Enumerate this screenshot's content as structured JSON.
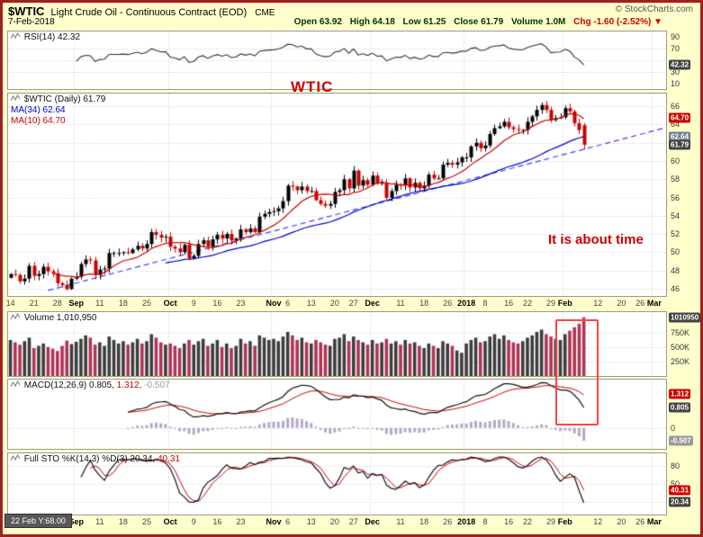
{
  "header": {
    "symbol": "$WTIC",
    "title": "Light Crude Oil - Continuous Contract (EOD)",
    "exchange": "CME",
    "copyright": "© StockCharts.com",
    "date": "7-Feb-2018",
    "quote": {
      "open_label": "Open",
      "open": "63.92",
      "high_label": "High",
      "high": "64.18",
      "low_label": "Low",
      "low": "61.25",
      "close_label": "Close",
      "close": "61.79",
      "volume_label": "Volume",
      "volume": "1.0M",
      "chg_label": "Chg",
      "chg": "-1.60 (-2.52%)",
      "chg_dir": "▼"
    }
  },
  "legends": {
    "rsi": {
      "name": "RSI(14)",
      "value": "42.32"
    },
    "price": {
      "name": "$WTIC (Daily)",
      "value": "61.79",
      "ma34": "MA(34) 62.64",
      "ma10": "MA(10) 64.70"
    },
    "volume": {
      "name": "Volume",
      "value": "1,010,950"
    },
    "macd": {
      "name": "MACD(12,26,9)",
      "v1": "0.805,",
      "v2": "1.312,",
      "v3": "-0.507"
    },
    "sto": {
      "name": "Full STO %K(14,3) %D(3)",
      "v1": "20.34,",
      "v2": "40.31"
    }
  },
  "annotations": {
    "title": "WTIC",
    "note": "It is about time"
  },
  "tooltip": {
    "text": "22 Feb Y:68.00"
  },
  "chart_data": {
    "type": "candlestick-multi-panel",
    "title": "$WTIC Light Crude Oil - Continuous Contract (EOD) CME",
    "date": "7-Feb-2018",
    "last_quote": {
      "open": 63.92,
      "high": 64.18,
      "low": 61.25,
      "close": 61.79,
      "volume": 1010950,
      "change": -1.6,
      "change_pct": -2.52
    },
    "slots": 140,
    "closes": [
      47.6,
      47.5,
      46.8,
      47.1,
      48.5,
      47.4,
      47.6,
      48.4,
      47.9,
      47.7,
      46.6,
      46.4,
      45.96,
      47.1,
      47.3,
      48.7,
      49.2,
      49.1,
      47.5,
      48.1,
      48.2,
      49.9,
      49.9,
      49.9,
      50.0,
      49.9,
      50.3,
      50.7,
      50.4,
      50.9,
      52.2,
      51.9,
      51.6,
      51.7,
      50.6,
      50.4,
      50.0,
      50.8,
      49.3,
      49.6,
      50.9,
      51.3,
      50.6,
      51.4,
      51.9,
      51.5,
      52.0,
      51.3,
      51.5,
      52.5,
      52.2,
      52.6,
      52.2,
      53.9,
      54.2,
      54.4,
      54.5,
      54.8,
      55.6,
      57.3,
      57.2,
      56.8,
      57.2,
      56.7,
      56.7,
      55.7,
      55.3,
      55.1,
      55.3,
      56.6,
      56.8,
      58.0,
      57.0,
      58.95,
      57.3,
      57.9,
      57.4,
      58.4,
      57.5,
      57.6,
      55.96,
      56.7,
      57.4,
      57.3,
      58.1,
      57.1,
      57.6,
      57.0,
      57.3,
      58.5,
      58.1,
      58.1,
      59.6,
      59.8,
      59.6,
      59.85,
      60.4,
      60.4,
      61.6,
      62.0,
      61.4,
      61.7,
      62.96,
      63.6,
      63.8,
      64.3,
      63.7,
      63.5,
      63.4,
      63.4,
      64.3,
      64.9,
      65.6,
      66.14,
      65.6,
      64.5,
      64.7,
      64.8,
      65.8,
      65.45,
      64.15,
      63.39,
      61.79
    ],
    "volumes_k": [
      620,
      580,
      540,
      600,
      660,
      480,
      520,
      560,
      500,
      470,
      430,
      520,
      610,
      550,
      590,
      640,
      700,
      660,
      540,
      580,
      520,
      680,
      620,
      560,
      600,
      540,
      580,
      640,
      560,
      600,
      720,
      660,
      580,
      540,
      560,
      520,
      480,
      560,
      620,
      540,
      600,
      640,
      520,
      560,
      620,
      500,
      560,
      480,
      520,
      640,
      560,
      600,
      520,
      700,
      660,
      620,
      640,
      600,
      680,
      760,
      700,
      620,
      660,
      580,
      560,
      620,
      580,
      540,
      520,
      640,
      660,
      720,
      600,
      680,
      620,
      580,
      540,
      620,
      560,
      580,
      640,
      560,
      600,
      540,
      620,
      560,
      580,
      520,
      480,
      560,
      520,
      480,
      600,
      560,
      520,
      440,
      400,
      560,
      620,
      660,
      580,
      600,
      680,
      720,
      640,
      700,
      620,
      580,
      560,
      600,
      660,
      700,
      760,
      800,
      720,
      680,
      640,
      620,
      720,
      780,
      840,
      900,
      1011
    ],
    "month_grid_idx": [
      14,
      34,
      56,
      77,
      97,
      118,
      137
    ],
    "x_labels": [
      {
        "t": "14",
        "i": 0
      },
      {
        "t": "21",
        "i": 5
      },
      {
        "t": "28",
        "i": 10
      },
      {
        "t": "Sep",
        "i": 14,
        "m": 1
      },
      {
        "t": "11",
        "i": 19
      },
      {
        "t": "18",
        "i": 24
      },
      {
        "t": "25",
        "i": 29
      },
      {
        "t": "Oct",
        "i": 34,
        "m": 1
      },
      {
        "t": "9",
        "i": 39
      },
      {
        "t": "16",
        "i": 44
      },
      {
        "t": "23",
        "i": 49
      },
      {
        "t": "Nov",
        "i": 56,
        "m": 1
      },
      {
        "t": "6",
        "i": 59
      },
      {
        "t": "13",
        "i": 64
      },
      {
        "t": "20",
        "i": 69
      },
      {
        "t": "27",
        "i": 73
      },
      {
        "t": "Dec",
        "i": 77,
        "m": 1
      },
      {
        "t": "11",
        "i": 83
      },
      {
        "t": "18",
        "i": 88
      },
      {
        "t": "26",
        "i": 93
      },
      {
        "t": "2018",
        "i": 97,
        "m": 1
      },
      {
        "t": "8",
        "i": 101
      },
      {
        "t": "16",
        "i": 106
      },
      {
        "t": "22",
        "i": 110
      },
      {
        "t": "29",
        "i": 115
      },
      {
        "t": "Feb",
        "i": 118,
        "m": 1
      },
      {
        "t": "12",
        "i": 125
      },
      {
        "t": "20",
        "i": 130
      },
      {
        "t": "26",
        "i": 134
      },
      {
        "t": "Mar",
        "i": 137,
        "m": 1
      }
    ],
    "panels": {
      "rsi": {
        "type": "line",
        "label": "RSI(14)",
        "last": 42.32,
        "range": [
          0,
          100
        ],
        "grid": [
          30,
          50,
          70
        ],
        "ticks": [
          {
            "v": 90,
            "t": "90"
          },
          {
            "v": 70,
            "t": "70"
          },
          {
            "v": 30,
            "t": "30"
          },
          {
            "v": 10,
            "t": "10"
          }
        ],
        "markers": [
          {
            "v": 42.32,
            "t": "42.32",
            "bg": "#444444"
          }
        ]
      },
      "price": {
        "type": "candlestick",
        "range": [
          45.2,
          67.4
        ],
        "grid_step": 2,
        "ma": [
          {
            "period": 34,
            "color": "#0000cc",
            "last": 62.64
          },
          {
            "period": 10,
            "color": "#cc0000",
            "last": 64.7
          }
        ],
        "trendline": {
          "i1": 8,
          "v1": 45.8,
          "i2": 139,
          "v2": 63.6
        },
        "ticks": [
          {
            "v": 66,
            "t": "66"
          },
          {
            "v": 64,
            "t": "64"
          },
          {
            "v": 60,
            "t": "60"
          },
          {
            "v": 58,
            "t": "58"
          },
          {
            "v": 56,
            "t": "56"
          },
          {
            "v": 54,
            "t": "54"
          },
          {
            "v": 52,
            "t": "52"
          },
          {
            "v": 50,
            "t": "50"
          },
          {
            "v": 48,
            "t": "48"
          },
          {
            "v": 46,
            "t": "46"
          }
        ],
        "markers": [
          {
            "v": 64.7,
            "t": "64.70",
            "bg": "#cc0000"
          },
          {
            "v": 62.64,
            "t": "62.64",
            "bg": "#708090"
          },
          {
            "v": 61.79,
            "t": "61.79",
            "bg": "#444444"
          }
        ]
      },
      "volume": {
        "type": "bar",
        "last": 1010950,
        "range_k": [
          0,
          1100
        ],
        "ticks": [
          {
            "v": 750,
            "t": "750K"
          },
          {
            "v": 500,
            "t": "500K"
          },
          {
            "v": 250,
            "t": "250K"
          }
        ],
        "markers": [
          {
            "v": 1011,
            "t": "1010950",
            "bg": "#444444"
          }
        ]
      },
      "macd": {
        "type": "line-histogram",
        "label": "MACD(12,26,9)",
        "last": {
          "macd": 0.805,
          "signal": 1.312,
          "hist": -0.507
        },
        "ticks": [
          {
            "v": 0,
            "t": "0"
          }
        ],
        "markers": [
          {
            "v": 1.312,
            "t": "1.312",
            "bg": "#cc0000"
          },
          {
            "v": 0.805,
            "t": "0.805",
            "bg": "#444444"
          },
          {
            "v": -0.507,
            "t": "-0.507",
            "bg": "#999999"
          }
        ]
      },
      "sto": {
        "type": "line",
        "label": "Full STO %K(14,3) %D(3)",
        "last": {
          "k": 20.34,
          "d": 40.31
        },
        "range": [
          0,
          100
        ],
        "grid": [
          20,
          50,
          80
        ],
        "ticks": [
          {
            "v": 80,
            "t": "80"
          },
          {
            "v": 50,
            "t": "50"
          },
          {
            "v": 20,
            "t": "20"
          }
        ],
        "markers": [
          {
            "v": 40.31,
            "t": "40.31",
            "bg": "#cc0000"
          },
          {
            "v": 20.34,
            "t": "20.34",
            "bg": "#444444"
          }
        ]
      }
    }
  }
}
